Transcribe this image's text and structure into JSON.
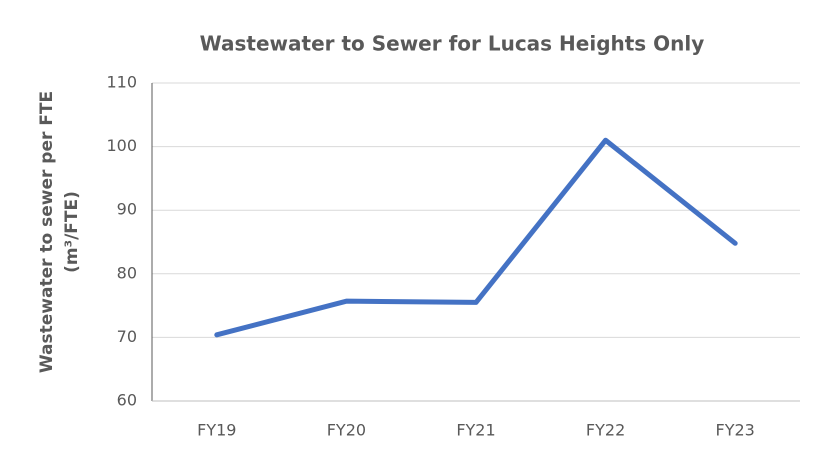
{
  "chart_data": {
    "type": "line",
    "title": "Wastewater to Sewer for Lucas Heights Only",
    "ylabel": [
      "Wastewater to sewer per FTE",
      "(m³/FTE)"
    ],
    "categories": [
      "FY19",
      "FY20",
      "FY21",
      "FY22",
      "FY23"
    ],
    "values": [
      70.4,
      75.7,
      75.5,
      101,
      84.8
    ],
    "color": "#4472c4",
    "ylim": [
      60,
      110
    ],
    "yticks": [
      60,
      70,
      80,
      90,
      100,
      110
    ],
    "grid": true
  }
}
